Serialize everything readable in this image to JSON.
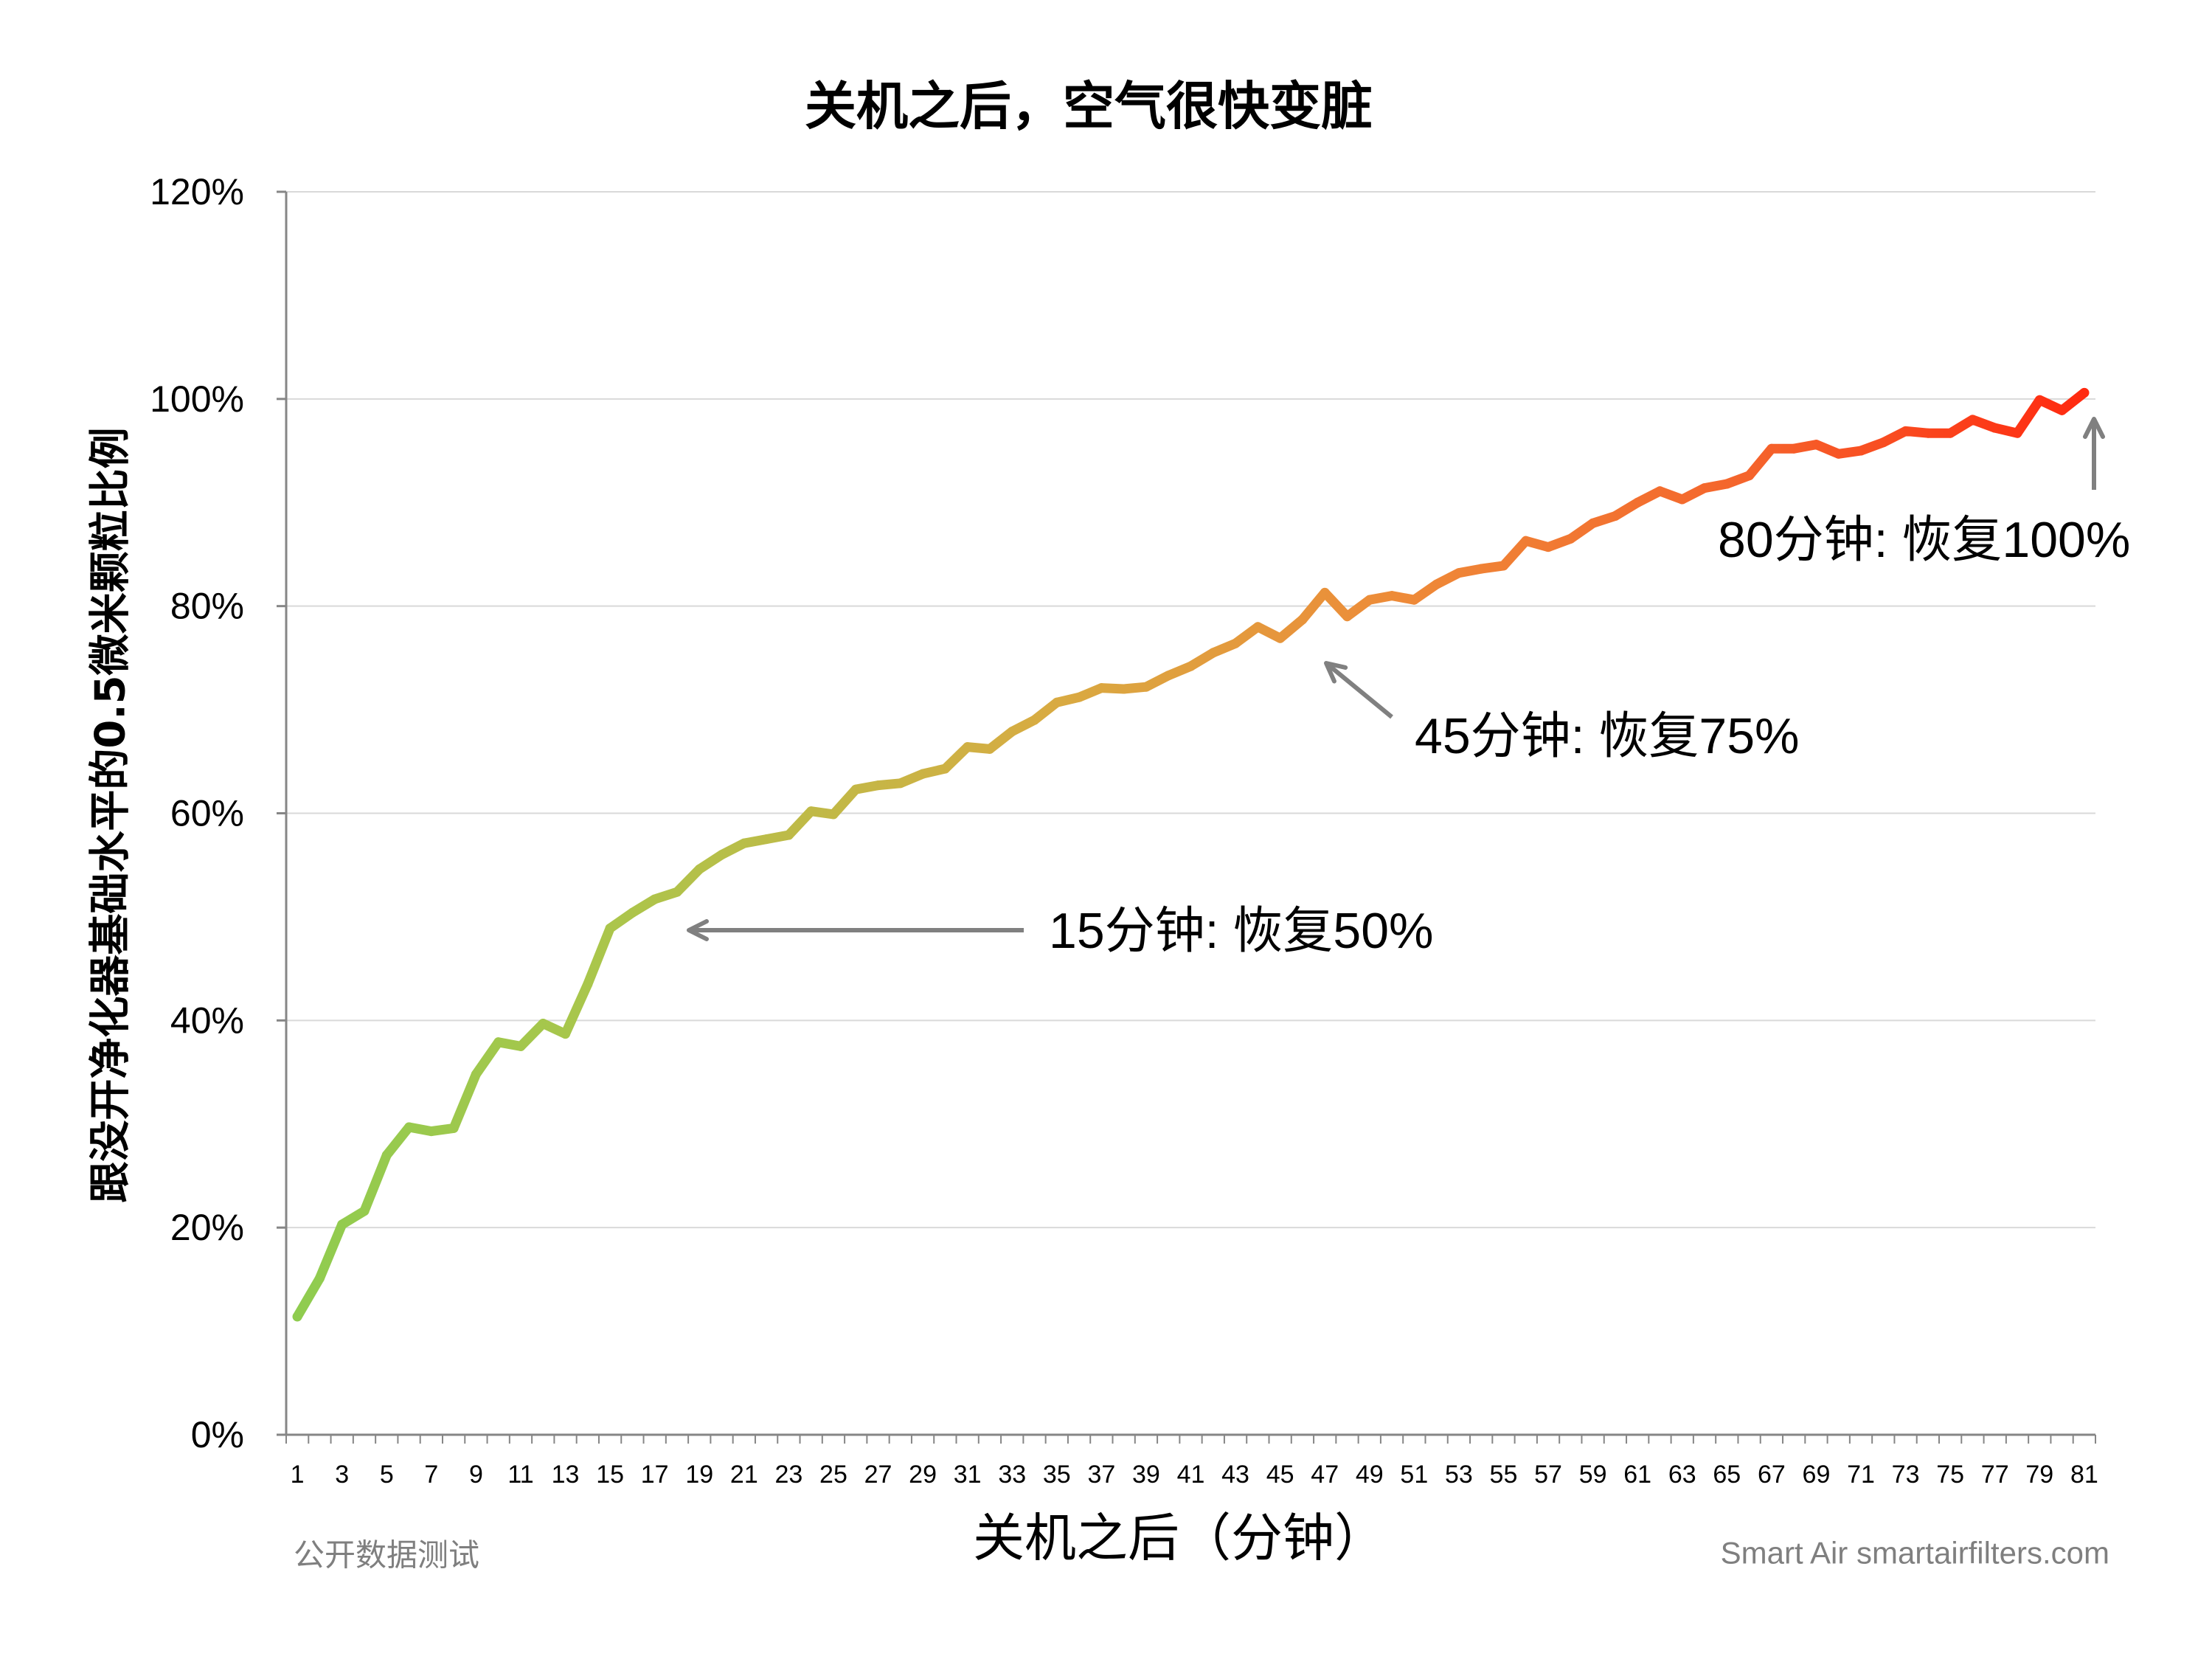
{
  "chart_data": {
    "type": "line",
    "title": "关机之后，空气很快变脏",
    "xlabel": "关机之后（分钟）",
    "ylabel": "跟没开净化器基础水平的0.5微米颗粒比例",
    "x": [
      1,
      2,
      3,
      4,
      5,
      6,
      7,
      8,
      9,
      10,
      11,
      12,
      13,
      14,
      15,
      16,
      17,
      18,
      19,
      20,
      21,
      22,
      23,
      24,
      25,
      26,
      27,
      28,
      29,
      30,
      31,
      32,
      33,
      34,
      35,
      36,
      37,
      38,
      39,
      40,
      41,
      42,
      43,
      44,
      45,
      46,
      47,
      48,
      49,
      50,
      51,
      52,
      53,
      54,
      55,
      56,
      57,
      58,
      59,
      60,
      61,
      62,
      63,
      64,
      65,
      66,
      67,
      68,
      69,
      70,
      71,
      72,
      73,
      74,
      75,
      76,
      77,
      78,
      79,
      80,
      81
    ],
    "x_tick_labels": [
      "1",
      "3",
      "5",
      "7",
      "9",
      "11",
      "13",
      "15",
      "17",
      "19",
      "21",
      "23",
      "25",
      "27",
      "29",
      "31",
      "33",
      "35",
      "37",
      "39",
      "41",
      "43",
      "45",
      "47",
      "49",
      "51",
      "53",
      "55",
      "57",
      "59",
      "61",
      "63",
      "65",
      "67",
      "69",
      "71",
      "73",
      "75",
      "77",
      "79",
      "81"
    ],
    "y_tick_labels": [
      "0%",
      "20%",
      "40%",
      "60%",
      "80%",
      "100%",
      "120%"
    ],
    "ylim": [
      0,
      120
    ],
    "grid": true,
    "series": [
      {
        "values": [
          11.4,
          15.1,
          20.3,
          21.6,
          27.0,
          29.7,
          29.3,
          29.6,
          34.8,
          37.9,
          37.5,
          39.7,
          38.7,
          43.5,
          48.9,
          50.4,
          51.7,
          52.4,
          54.6,
          56.0,
          57.1,
          57.5,
          57.9,
          60.2,
          59.9,
          62.3,
          62.7,
          62.9,
          63.8,
          64.3,
          66.4,
          66.2,
          67.9,
          69.0,
          70.7,
          71.2,
          72.1,
          72.0,
          72.2,
          73.3,
          74.2,
          75.5,
          76.4,
          78.0,
          76.9,
          78.7,
          81.3,
          79.0,
          80.6,
          81.0,
          80.6,
          82.1,
          83.2,
          83.6,
          83.9,
          86.3,
          85.7,
          86.5,
          88.0,
          88.7,
          90.0,
          91.1,
          90.3,
          91.4,
          91.8,
          92.6,
          95.2,
          95.2,
          95.6,
          94.7,
          95.0,
          95.8,
          96.9,
          96.7,
          96.7,
          98.0,
          97.2,
          96.7,
          99.9,
          98.9,
          100.6
        ]
      }
    ],
    "annotations": [
      {
        "text": "15分钟: 恢复50%"
      },
      {
        "text": "45分钟: 恢复75%"
      },
      {
        "text": "80分钟: 恢复100%"
      }
    ]
  },
  "footer": {
    "left": "公开数据测试",
    "right": "Smart Air smartairfilters.com"
  },
  "colors": {
    "line_gradient": [
      "#8fcc4f",
      "#acc54b",
      "#d8ab42",
      "#ee8a38",
      "#f5622b",
      "#ff2a10"
    ],
    "gridline": "#d9d9d9",
    "axis": "#868686",
    "arrow": "#808080",
    "text": "#000000",
    "footer_text": "#7f7f7f"
  }
}
